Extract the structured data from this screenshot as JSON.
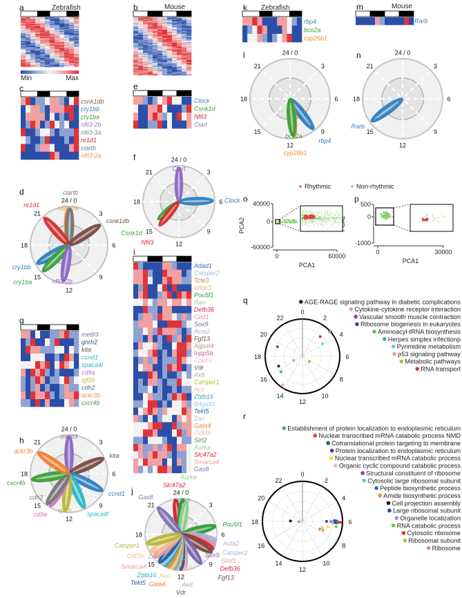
{
  "colors": {
    "heat": [
      "#2b4fa8",
      "#8fa2d4",
      "#f3f3f3",
      "#f2a0a0",
      "#e0333a"
    ],
    "rhythmic": "#e0333a",
    "non_rhythmic": "#6cc04a"
  },
  "light_dark": [
    "light",
    "dark",
    "light",
    "dark"
  ],
  "chart_data": [
    {
      "panel": "a",
      "type": "heatmap",
      "title": "Zebrafish",
      "colorbar": {
        "min_label": "Min",
        "max_label": "Max"
      }
    },
    {
      "panel": "b",
      "type": "heatmap",
      "title": "Mouse"
    },
    {
      "panel": "c",
      "type": "heatmap",
      "rows": [
        {
          "gene": "csnk1db",
          "color": "#8a5a50",
          "levels": "340112331024"
        },
        {
          "gene": "cry1bb",
          "color": "#3a7fb8",
          "levels": "023310333440"
        },
        {
          "gene": "cry1ba",
          "color": "#3a9b3a",
          "levels": "033330201040"
        },
        {
          "gene": "nfil3-2b",
          "color": "#8a78b8",
          "levels": "014301421200"
        },
        {
          "gene": "nfil3-3a",
          "color": "#888888",
          "levels": "400122101114"
        },
        {
          "gene": "nr1d1",
          "color": "#c92a35",
          "levels": "210014000104"
        },
        {
          "gene": "ciartb",
          "color": "#777777",
          "levels": "400133200034"
        },
        {
          "gene": "nfil3-2a",
          "color": "#e8913a",
          "levels": "000000430000"
        }
      ]
    },
    {
      "panel": "d",
      "type": "polar-phase",
      "hour_labels": [
        "24 / 0",
        "3",
        "6",
        "9",
        "12",
        "15",
        "18",
        "21"
      ],
      "petals": [
        {
          "gene": "nfil3-2a",
          "color": "#e8913a",
          "phase": 23.9,
          "amp": 1.0
        },
        {
          "gene": "ciartb",
          "color": "#777777",
          "phase": 0.1,
          "amp": 1.0
        },
        {
          "gene": "nr1d1",
          "color": "#d2302c",
          "phase": 21.2,
          "amp": 1.0
        },
        {
          "gene": "csnk1db",
          "color": "#7a4a42",
          "phase": 3.8,
          "amp": 1.0
        },
        {
          "gene": "cry1bb",
          "color": "#2f7fbf",
          "phase": 16.0,
          "amp": 1.0
        },
        {
          "gene": "cry1ba",
          "color": "#3aa03a",
          "phase": 15.0,
          "amp": 1.0
        },
        {
          "gene": "nfil3-2b",
          "color": "#8a68c0",
          "phase": 12.6,
          "amp": 1.0
        }
      ]
    },
    {
      "panel": "e",
      "type": "heatmap",
      "rows": [
        {
          "gene": "Clock",
          "color": "#3a7fb8",
          "levels": "331012342200"
        },
        {
          "gene": "Csnk1d",
          "color": "#3a9b3a",
          "levels": "200334200014"
        },
        {
          "gene": "Nfil3",
          "color": "#c92a35",
          "levels": "300343120423"
        },
        {
          "gene": "Ciart",
          "color": "#8a78b8",
          "levels": "400114020003"
        }
      ]
    },
    {
      "panel": "f",
      "type": "polar-phase",
      "hour_labels": [
        "24 / 0",
        "3",
        "6",
        "9",
        "12",
        "15",
        "18",
        "21"
      ],
      "petals": [
        {
          "gene": "Ciart",
          "color": "#8a68c0",
          "phase": 0.0,
          "amp": 1.0
        },
        {
          "gene": "Clock",
          "color": "#2f7fbf",
          "phase": 5.9,
          "amp": 1.0
        },
        {
          "gene": "Csnk1d",
          "color": "#3aa03a",
          "phase": 15.3,
          "amp": 0.8
        },
        {
          "gene": "Nfil3",
          "color": "#d2302c",
          "phase": 14.6,
          "amp": 0.9
        }
      ]
    },
    {
      "panel": "g",
      "type": "heatmap",
      "rows": [
        {
          "gene": "mettl3",
          "color": "#7a64b0",
          "levels": "330200113411"
        },
        {
          "gene": "gnrh2",
          "color": "#2a4a8a",
          "levels": "014002140001"
        },
        {
          "gene": "kita",
          "color": "#6a4a40",
          "levels": "043311122021"
        },
        {
          "gene": "ccnd1",
          "color": "#2ab0c0",
          "levels": "002220010430"
        },
        {
          "gene": "spaca4l",
          "color": "#2ab0c0",
          "levels": "222434024320"
        },
        {
          "gene": "cd9a",
          "color": "#c070b8",
          "levels": "304341010001"
        },
        {
          "gene": "igf2b",
          "color": "#b8b83a",
          "levels": "101430112412"
        },
        {
          "gene": "cdh2",
          "color": "#666666",
          "levels": "101301001311"
        },
        {
          "gene": "ackr3b",
          "color": "#e8913a",
          "levels": "304334101334"
        },
        {
          "gene": "cxcr4b",
          "color": "#3a9b3a",
          "levels": "110403000231"
        }
      ]
    },
    {
      "panel": "h",
      "type": "polar-phase",
      "hour_labels": [
        "24 / 0",
        "3",
        "6",
        "9",
        "12",
        "15",
        "18",
        "21"
      ],
      "petals": [
        {
          "gene": "mettl3",
          "color": "#8a68c0",
          "phase": 0.0,
          "amp": 1.0
        },
        {
          "gene": "kita",
          "color": "#7a4a42",
          "phase": 4.4,
          "amp": 1.0
        },
        {
          "gene": "ccnd1",
          "color": "#2f7fbf",
          "phase": 7.8,
          "amp": 1.0
        },
        {
          "gene": "spaca4l",
          "color": "#2ab8c8",
          "phase": 10.4,
          "amp": 1.0
        },
        {
          "gene": "igf2b",
          "color": "#b8b83a",
          "phase": 12.4,
          "amp": 1.0
        },
        {
          "gene": "cd9a",
          "color": "#d070c0",
          "phase": 14.0,
          "amp": 1.0
        },
        {
          "gene": "cdh2",
          "color": "#777777",
          "phase": 14.4,
          "amp": 1.0
        },
        {
          "gene": "cxcr4b",
          "color": "#3aa03a",
          "phase": 17.4,
          "amp": 1.0
        },
        {
          "gene": "ackr3b",
          "color": "#f08030",
          "phase": 20.3,
          "amp": 1.0
        }
      ]
    },
    {
      "panel": "i",
      "type": "heatmap",
      "rows": [
        {
          "gene": "Adad1",
          "color": "#3a6fb0",
          "levels": "410000331000"
        },
        {
          "gene": "Catsper2",
          "color": "#9fb6dc",
          "levels": "334100433301"
        },
        {
          "gene": "Tcte3",
          "color": "#e07b2a",
          "levels": "334200343311"
        },
        {
          "gene": "Wfdc2",
          "color": "#f0b080",
          "levels": "014002404000"
        },
        {
          "gene": "Pou5f1",
          "color": "#2e9b3a",
          "levels": "034001340434"
        },
        {
          "gene": "Ran",
          "color": "#8fcf8f",
          "levels": "223213323323"
        },
        {
          "gene": "Defb36",
          "color": "#c9283a",
          "levels": "004110330000"
        },
        {
          "gene": "Gtsf1",
          "color": "#f09090",
          "levels": "013314332131"
        },
        {
          "gene": "Sox9",
          "color": "#7a64b0",
          "levels": "133320044412"
        },
        {
          "gene": "Acta2",
          "color": "#b8a8d8",
          "levels": "112314333101"
        },
        {
          "gene": "Fgf13",
          "color": "#7a4a40",
          "levels": "110301041304"
        },
        {
          "gene": "Agpat4",
          "color": "#b09890",
          "levels": "032231002443"
        },
        {
          "gene": "Inpp5b",
          "color": "#c060b0",
          "levels": "122340103441"
        },
        {
          "gene": "Cpeb1",
          "color": "#f0b0d0",
          "levels": "013130111432"
        },
        {
          "gene": "Vdr",
          "color": "#555555",
          "levels": "023300143401"
        },
        {
          "gene": "Ak8",
          "color": "#b0b0b0",
          "levels": "000430100121"
        },
        {
          "gene": "Catsper1",
          "color": "#b8b83a",
          "levels": "010331011422"
        },
        {
          "gene": "Ace",
          "color": "#e0d080",
          "levels": "011201001011"
        },
        {
          "gene": "Zbtb16",
          "color": "#20b0c0",
          "levels": "002311014340"
        },
        {
          "gene": "B4galt1",
          "color": "#90d0e0",
          "levels": "112440102231"
        },
        {
          "gene": "Tekt5",
          "color": "#2060a0",
          "levels": "023431322243"
        },
        {
          "gene": "Zan",
          "color": "#a8c0e8",
          "levels": "310201220323"
        },
        {
          "gene": "Gata4",
          "color": "#e88a30",
          "levels": "222344004133"
        },
        {
          "gene": "Odf3b",
          "color": "#f0c090",
          "levels": "224430002413"
        },
        {
          "gene": "Sirt2",
          "color": "#2e9b3a",
          "levels": "110222100211"
        },
        {
          "gene": "Aurka",
          "color": "#90d090",
          "levels": "431131340332"
        },
        {
          "gene": "Slc47a2",
          "color": "#d02030",
          "levels": "231343310112"
        },
        {
          "gene": "Smarca4",
          "color": "#f09898",
          "levels": "324333020312"
        },
        {
          "gene": "Gas8",
          "color": "#8070b0",
          "levels": "312124430012"
        }
      ]
    },
    {
      "panel": "j",
      "type": "polar-phase",
      "hour_labels": [
        "24 / 0",
        "3",
        "6",
        "9",
        "12",
        "15",
        "18",
        "21"
      ],
      "petals": [
        {
          "gene": "Slc47a2",
          "color": "#d02030",
          "phase": 23.4,
          "amp": 1.0
        },
        {
          "gene": "Sirt2",
          "color": "#2e9b3a",
          "phase": 0.2,
          "amp": 1.0
        },
        {
          "gene": "Aurka",
          "color": "#90d090",
          "phase": 0.6,
          "amp": 0.95
        },
        {
          "gene": "Gas8",
          "color": "#8070b0",
          "phase": 21.3,
          "amp": 1.0
        },
        {
          "gene": "Pou5f1",
          "color": "#2e9b3a",
          "phase": 5.1,
          "amp": 1.0
        },
        {
          "gene": "Acta2",
          "color": "#b8a8d8",
          "phase": 6.6,
          "amp": 1.0
        },
        {
          "gene": "Catsper2",
          "color": "#9fb6dc",
          "phase": 7.0,
          "amp": 1.0
        },
        {
          "gene": "Gtsf1",
          "color": "#f09090",
          "phase": 7.3,
          "amp": 1.0
        },
        {
          "gene": "Defb36",
          "color": "#c9283a",
          "phase": 7.6,
          "amp": 1.0
        },
        {
          "gene": "Fgf13",
          "color": "#7a4a40",
          "phase": 8.0,
          "amp": 1.0
        },
        {
          "gene": "Sox9",
          "color": "#7a64b0",
          "phase": 9.7,
          "amp": 1.0
        },
        {
          "gene": "Ak8",
          "color": "#b0b0b0",
          "phase": 11.5,
          "amp": 0.95
        },
        {
          "gene": "Cpeb1",
          "color": "#f0b0d0",
          "phase": 11.8,
          "amp": 1.0
        },
        {
          "gene": "Vdr",
          "color": "#555555",
          "phase": 12.0,
          "amp": 1.0
        },
        {
          "gene": "B4galt1",
          "color": "#90d0e0",
          "phase": 12.4,
          "amp": 1.0
        },
        {
          "gene": "Agpat4",
          "color": "#b09890",
          "phase": 12.7,
          "amp": 1.0
        },
        {
          "gene": "Ace",
          "color": "#e0d080",
          "phase": 13.0,
          "amp": 1.0
        },
        {
          "gene": "Gata4",
          "color": "#e88a30",
          "phase": 13.4,
          "amp": 1.0
        },
        {
          "gene": "Zbtb16",
          "color": "#20b0c0",
          "phase": 13.8,
          "amp": 1.0
        },
        {
          "gene": "Zan",
          "color": "#a8c0e8",
          "phase": 14.1,
          "amp": 1.0
        },
        {
          "gene": "Tekt5",
          "color": "#2060a0",
          "phase": 14.5,
          "amp": 1.0
        },
        {
          "gene": "Smarca4",
          "color": "#f09898",
          "phase": 15.3,
          "amp": 1.0
        },
        {
          "gene": "Odf3b",
          "color": "#f0c090",
          "phase": 16.0,
          "amp": 1.0
        },
        {
          "gene": "Catsper1",
          "color": "#b8b83a",
          "phase": 17.0,
          "amp": 1.0
        }
      ]
    },
    {
      "panel": "k",
      "type": "heatmap",
      "title": "Zebrafish",
      "rows": [
        {
          "gene": "rbp4",
          "color": "#3a7fb8",
          "levels": "334300033210"
        },
        {
          "gene": "bco2a",
          "color": "#3a9b3a",
          "levels": "012430003200"
        },
        {
          "gene": "cyp26b1",
          "color": "#e8913a",
          "levels": "022310123400"
        }
      ]
    },
    {
      "panel": "l",
      "type": "polar-phase",
      "hour_labels": [
        "24 / 0",
        "3",
        "6",
        "9",
        "12",
        "15",
        "18",
        "21"
      ],
      "petals": [
        {
          "gene": "rbp4",
          "color": "#2f7fbf",
          "phase": 9.5,
          "amp": 1.0
        },
        {
          "gene": "cyp26b1",
          "color": "#f08a30",
          "phase": 11.6,
          "amp": 1.0
        },
        {
          "gene": "bco2a",
          "color": "#3aa03a",
          "phase": 11.7,
          "amp": 0.97
        }
      ]
    },
    {
      "panel": "m",
      "type": "heatmap",
      "title": "Mouse",
      "rows": [
        {
          "gene": "Rarb",
          "color": "#3a7fb8",
          "levels": "000031000040"
        }
      ]
    },
    {
      "panel": "n",
      "type": "polar-phase",
      "hour_labels": [
        "24 / 0",
        "3",
        "6",
        "9",
        "12",
        "15",
        "18",
        "21"
      ],
      "petals": [
        {
          "gene": "Rarb",
          "color": "#2f7fbf",
          "phase": 15.6,
          "amp": 1.0
        }
      ]
    },
    {
      "panel": "o",
      "type": "scatter",
      "xlabel": "PCA1",
      "ylabel": "PCA2",
      "xlim": [
        0,
        60000
      ],
      "ylim": [
        -60000,
        40000
      ],
      "xticks": [
        "0",
        "60000"
      ],
      "yticks": [
        "40000",
        "0",
        "-60000"
      ],
      "legend": [
        "Rhythmic",
        "Non-rhythmic"
      ]
    },
    {
      "panel": "p",
      "type": "scatter",
      "xlabel": "PCA1",
      "ylabel": "PCA2",
      "xlim": [
        0,
        30000
      ],
      "ylim": [
        -1000,
        500
      ],
      "xticks": [
        "0",
        "30000"
      ],
      "yticks": [
        "500",
        "0",
        "-1000"
      ]
    },
    {
      "panel": "q",
      "type": "polar-scatter",
      "hour_labels": [
        "0",
        "2",
        "4",
        "6",
        "8",
        "10",
        "12",
        "14",
        "16",
        "18",
        "20",
        "22"
      ],
      "points": [
        {
          "label": "AGE-RAGE signaling pathway in diabetic complications",
          "color": "#222222",
          "phase": 16.5,
          "r": 0.69
        },
        {
          "label": "Cytokine-cytokine receptor interaction",
          "color": "#d49ad4",
          "phase": 16.3,
          "r": 0.26
        },
        {
          "label": "Vascular smooth muscle contraction",
          "color": "#9a3a9a",
          "phase": 19.4,
          "r": 0.72
        },
        {
          "label": "Ribosome biogenesis in eukaryotes",
          "color": "#2a4aa0",
          "phase": 3.3,
          "r": 1.0
        },
        {
          "label": "Aminoacyl-tRNA biosynthesis",
          "color": "#6cc04a",
          "phase": 3.2,
          "r": 0.98
        },
        {
          "label": "Herpes simplex infectionp",
          "color": "#2fb898",
          "phase": 15.6,
          "r": 0.71
        },
        {
          "label": "Pyrimidine metabolism",
          "color": "#6cc8d8",
          "phase": 3.85,
          "r": 0.63
        },
        {
          "label": "p53 signaling pathway",
          "color": "#f0a088",
          "phase": 14.3,
          "r": 0.93
        },
        {
          "label": "Metabolic pathways",
          "color": "#b8b83a",
          "phase": 8.5,
          "r": 0.23
        },
        {
          "label": "RNA transport",
          "color": "#e03030",
          "phase": 2.8,
          "r": 0.71
        }
      ]
    },
    {
      "panel": "r",
      "type": "polar-scatter",
      "hour_labels": [
        "0",
        "2",
        "4",
        "6",
        "8",
        "10",
        "12",
        "14",
        "16",
        "18",
        "20",
        "22"
      ],
      "points": [
        {
          "label": "Establishment of protein localization to endoplasmic reticulum",
          "color": "#3cb08a",
          "phase": 6.2,
          "r": 0.86
        },
        {
          "label": "Nuclear transcribed mRNA catabolic process NMD",
          "color": "#e8404a",
          "phase": 6.1,
          "r": 0.9
        },
        {
          "label": "Cotranslational protein targeting to membrane",
          "color": "#1f5f5a",
          "phase": 6.15,
          "r": 0.82
        },
        {
          "label": "Protein localization to endoplasmic reticulum",
          "color": "#4a3a9a",
          "phase": 6.0,
          "r": 0.6
        },
        {
          "label": "Nuclear transcribed mRNA catabolic process",
          "color": "#f0e020",
          "phase": 6.8,
          "r": 0.65
        },
        {
          "label": "Organic cyclic compound catabolic process",
          "color": "#f0b8c0",
          "phase": 7.2,
          "r": 0.52
        },
        {
          "label": "Structural constituent of ribosome",
          "color": "#9a3a9a",
          "phase": 6.05,
          "r": 0.72
        },
        {
          "label": "Cytosolic large ribosomal subunit",
          "color": "#6cc8d8",
          "phase": 6.2,
          "r": 0.76
        },
        {
          "label": "Peptide biosynthetic process",
          "color": "#2a6ac0",
          "phase": 5.95,
          "r": 0.86
        },
        {
          "label": "Amide biosynthetic process",
          "color": "#f08a40",
          "phase": 7.6,
          "r": 0.47
        },
        {
          "label": "Cell projection assembly",
          "color": "#111111",
          "phase": 18.1,
          "r": 0.3
        },
        {
          "label": "Large ribosomal subunit",
          "color": "#2a4aa0",
          "phase": 5.9,
          "r": 0.8
        },
        {
          "label": "Organelle localization",
          "color": "#a890d0",
          "phase": 17.6,
          "r": 0.09
        },
        {
          "label": "RNA catabolic process",
          "color": "#6cc04a",
          "phase": 6.6,
          "r": 0.85
        },
        {
          "label": "Cytosolic ribosome",
          "color": "#e03030",
          "phase": 6.1,
          "r": 0.95
        },
        {
          "label": "Ribosomal subunit",
          "color": "#b8b83a",
          "phase": 7.6,
          "r": 0.56
        },
        {
          "label": "Ribosome",
          "color": "#c890c8",
          "phase": 6.0,
          "r": 0.7
        }
      ]
    }
  ]
}
